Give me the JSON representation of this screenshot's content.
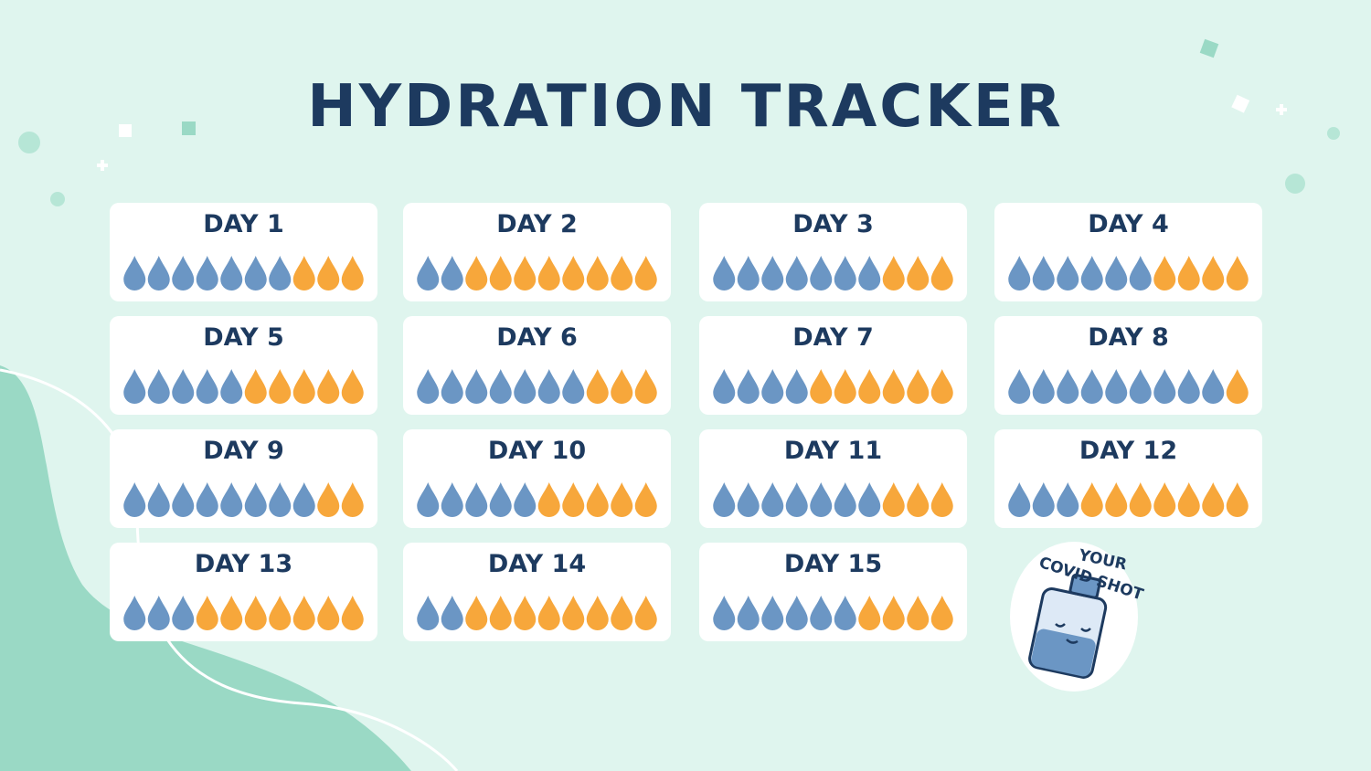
{
  "title": "HYDRATION TRACKER",
  "drops_per_day": 10,
  "days": [
    {
      "label": "DAY 1",
      "filled": 7
    },
    {
      "label": "DAY 2",
      "filled": 2
    },
    {
      "label": "DAY 3",
      "filled": 7
    },
    {
      "label": "DAY 4",
      "filled": 6
    },
    {
      "label": "DAY 5",
      "filled": 5
    },
    {
      "label": "DAY 6",
      "filled": 7
    },
    {
      "label": "DAY 7",
      "filled": 4
    },
    {
      "label": "DAY 8",
      "filled": 9
    },
    {
      "label": "DAY 9",
      "filled": 8
    },
    {
      "label": "DAY 10",
      "filled": 5
    },
    {
      "label": "DAY 11",
      "filled": 7
    },
    {
      "label": "DAY 12",
      "filled": 3
    },
    {
      "label": "DAY 13",
      "filled": 3
    },
    {
      "label": "DAY 14",
      "filled": 2
    },
    {
      "label": "DAY 15",
      "filled": 6
    }
  ],
  "sticker": {
    "top": "YOUR",
    "bottom": "COVID SHOT"
  }
}
